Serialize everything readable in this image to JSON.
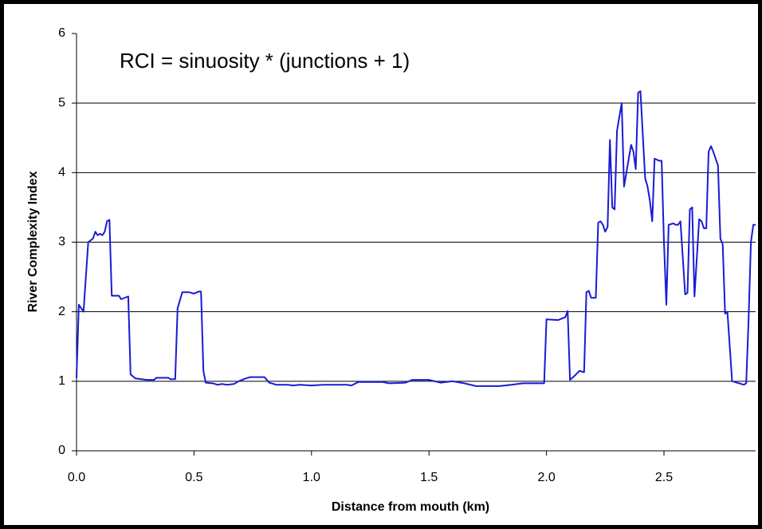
{
  "chart_data": {
    "type": "line",
    "annotation": "RCI = sinuosity * (junctions + 1)",
    "xlabel": "Distance from mouth (km)",
    "ylabel": "River Complexity Index",
    "x": [
      0,
      0.01,
      0.03,
      0.05,
      0.07,
      0.08,
      0.09,
      0.1,
      0.11,
      0.12,
      0.13,
      0.14,
      0.15,
      0.18,
      0.19,
      0.22,
      0.23,
      0.25,
      0.3,
      0.33,
      0.34,
      0.39,
      0.4,
      0.42,
      0.43,
      0.45,
      0.48,
      0.5,
      0.52,
      0.53,
      0.54,
      0.55,
      0.58,
      0.6,
      0.62,
      0.64,
      0.67,
      0.69,
      0.72,
      0.74,
      0.8,
      0.82,
      0.85,
      0.9,
      0.92,
      0.95,
      1.0,
      1.05,
      1.15,
      1.17,
      1.2,
      1.3,
      1.33,
      1.4,
      1.43,
      1.5,
      1.55,
      1.6,
      1.65,
      1.7,
      1.8,
      1.85,
      1.9,
      1.99,
      2.0,
      2.05,
      2.08,
      2.09,
      2.1,
      2.12,
      2.14,
      2.16,
      2.17,
      2.18,
      2.19,
      2.21,
      2.22,
      2.23,
      2.24,
      2.25,
      2.26,
      2.27,
      2.28,
      2.29,
      2.3,
      2.31,
      2.32,
      2.33,
      2.34,
      2.36,
      2.37,
      2.38,
      2.39,
      2.4,
      2.42,
      2.43,
      2.44,
      2.45,
      2.46,
      2.48,
      2.49,
      2.5,
      2.51,
      2.52,
      2.54,
      2.55,
      2.56,
      2.57,
      2.59,
      2.6,
      2.61,
      2.62,
      2.63,
      2.65,
      2.66,
      2.67,
      2.68,
      2.69,
      2.7,
      2.71,
      2.73,
      2.74,
      2.75,
      2.76,
      2.77,
      2.79,
      2.84,
      2.85,
      2.86,
      2.87,
      2.88,
      2.89
    ],
    "series": [
      {
        "name": "RCI",
        "color": "#1a1ad6",
        "values": [
          1.05,
          2.1,
          2.0,
          3.0,
          3.05,
          3.15,
          3.1,
          3.12,
          3.1,
          3.15,
          3.3,
          3.32,
          2.23,
          2.23,
          2.18,
          2.22,
          1.1,
          1.04,
          1.02,
          1.02,
          1.05,
          1.05,
          1.03,
          1.03,
          2.05,
          2.28,
          2.28,
          2.26,
          2.29,
          2.29,
          1.15,
          0.98,
          0.97,
          0.95,
          0.96,
          0.95,
          0.96,
          1.0,
          1.04,
          1.06,
          1.06,
          0.98,
          0.95,
          0.95,
          0.94,
          0.95,
          0.94,
          0.95,
          0.95,
          0.94,
          0.99,
          0.99,
          0.97,
          0.98,
          1.02,
          1.02,
          0.98,
          1.0,
          0.97,
          0.93,
          0.93,
          0.95,
          0.97,
          0.97,
          1.89,
          1.88,
          1.92,
          2.01,
          1.02,
          1.08,
          1.15,
          1.13,
          2.28,
          2.3,
          2.2,
          2.2,
          3.28,
          3.3,
          3.25,
          3.15,
          3.22,
          4.47,
          3.5,
          3.47,
          4.6,
          4.8,
          5.0,
          3.8,
          4.0,
          4.4,
          4.3,
          4.05,
          5.15,
          5.17,
          3.92,
          3.8,
          3.6,
          3.3,
          4.2,
          4.17,
          4.17,
          3.0,
          2.1,
          3.25,
          3.27,
          3.25,
          3.25,
          3.3,
          2.25,
          2.27,
          3.47,
          3.5,
          2.22,
          3.33,
          3.3,
          3.2,
          3.2,
          4.3,
          4.38,
          4.3,
          4.1,
          3.05,
          2.97,
          1.97,
          2.0,
          1.0,
          0.95,
          0.97,
          1.9,
          3.0,
          3.25,
          3.25
        ]
      }
    ],
    "xlim": [
      0,
      2.89
    ],
    "ylim": [
      0,
      6
    ],
    "xticks": [
      {
        "value": 0,
        "label": "0.0"
      },
      {
        "value": 0.5,
        "label": "0.5"
      },
      {
        "value": 1,
        "label": "1.0"
      },
      {
        "value": 1.5,
        "label": "1.5"
      },
      {
        "value": 2,
        "label": "2.0"
      },
      {
        "value": 2.5,
        "label": "2.5"
      }
    ],
    "yticks": [
      0,
      1,
      2,
      3,
      4,
      5,
      6
    ],
    "grid": true
  }
}
